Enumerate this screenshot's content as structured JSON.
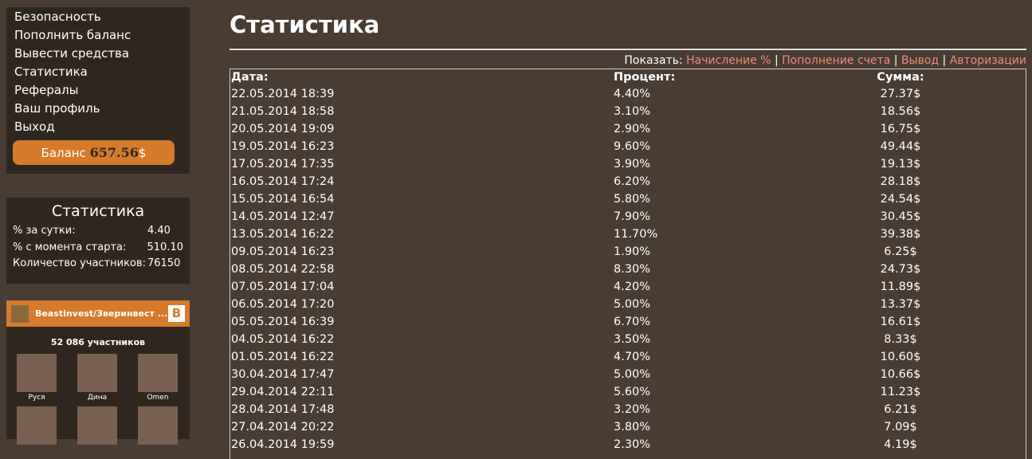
{
  "sidebar": {
    "menu": [
      "Безопасность",
      "Пополнить баланс",
      "Вывести средства",
      "Статистика",
      "Рефералы",
      "Ваш профиль",
      "Выход"
    ],
    "balance_label": "Баланс",
    "balance_value": "657.56",
    "balance_currency": "$"
  },
  "stats": {
    "title": "Статистика",
    "rows": [
      {
        "label": "% за сутки:",
        "value": "4.40"
      },
      {
        "label": "% с момента старта:",
        "value": "510.10"
      },
      {
        "label": "Количество участников:",
        "value": "76150"
      }
    ]
  },
  "vk": {
    "group": "Beastinvest/Зверинвест ...",
    "logo": "В",
    "count": "52 086 участников",
    "members": [
      "Руся",
      "Дина",
      "Omen",
      "",
      "",
      ""
    ]
  },
  "main": {
    "title": "Статистика",
    "filter_label": "Показать:",
    "filters": [
      "Начисление %",
      "Пополнение счета",
      "Вывод",
      "Авторизации"
    ],
    "columns": [
      "Дата:",
      "Процент:",
      "Сумма:"
    ],
    "rows": [
      [
        "22.05.2014 18:39",
        "4.40%",
        "27.37$"
      ],
      [
        "21.05.2014 18:58",
        "3.10%",
        "18.56$"
      ],
      [
        "20.05.2014 19:09",
        "2.90%",
        "16.75$"
      ],
      [
        "19.05.2014 16:23",
        "9.60%",
        "49.44$"
      ],
      [
        "17.05.2014 17:35",
        "3.90%",
        "19.13$"
      ],
      [
        "16.05.2014 17:24",
        "6.20%",
        "28.18$"
      ],
      [
        "15.05.2014 16:54",
        "5.80%",
        "24.54$"
      ],
      [
        "14.05.2014 12:47",
        "7.90%",
        "30.45$"
      ],
      [
        "13.05.2014 16:22",
        "11.70%",
        "39.38$"
      ],
      [
        "09.05.2014 16:23",
        "1.90%",
        "6.25$"
      ],
      [
        "08.05.2014 22:58",
        "8.30%",
        "24.73$"
      ],
      [
        "07.05.2014 17:04",
        "4.20%",
        "11.89$"
      ],
      [
        "06.05.2014 17:20",
        "5.00%",
        "13.37$"
      ],
      [
        "05.05.2014 16:39",
        "6.70%",
        "16.61$"
      ],
      [
        "04.05.2014 16:22",
        "3.50%",
        "8.33$"
      ],
      [
        "01.05.2014 16:22",
        "4.70%",
        "10.60$"
      ],
      [
        "30.04.2014 17:47",
        "5.00%",
        "10.66$"
      ],
      [
        "29.04.2014 22:11",
        "5.60%",
        "11.23$"
      ],
      [
        "28.04.2014 17:48",
        "3.20%",
        "6.21$"
      ],
      [
        "27.04.2014 20:22",
        "3.80%",
        "7.09$"
      ],
      [
        "26.04.2014 19:59",
        "2.30%",
        "4.19$"
      ]
    ]
  }
}
